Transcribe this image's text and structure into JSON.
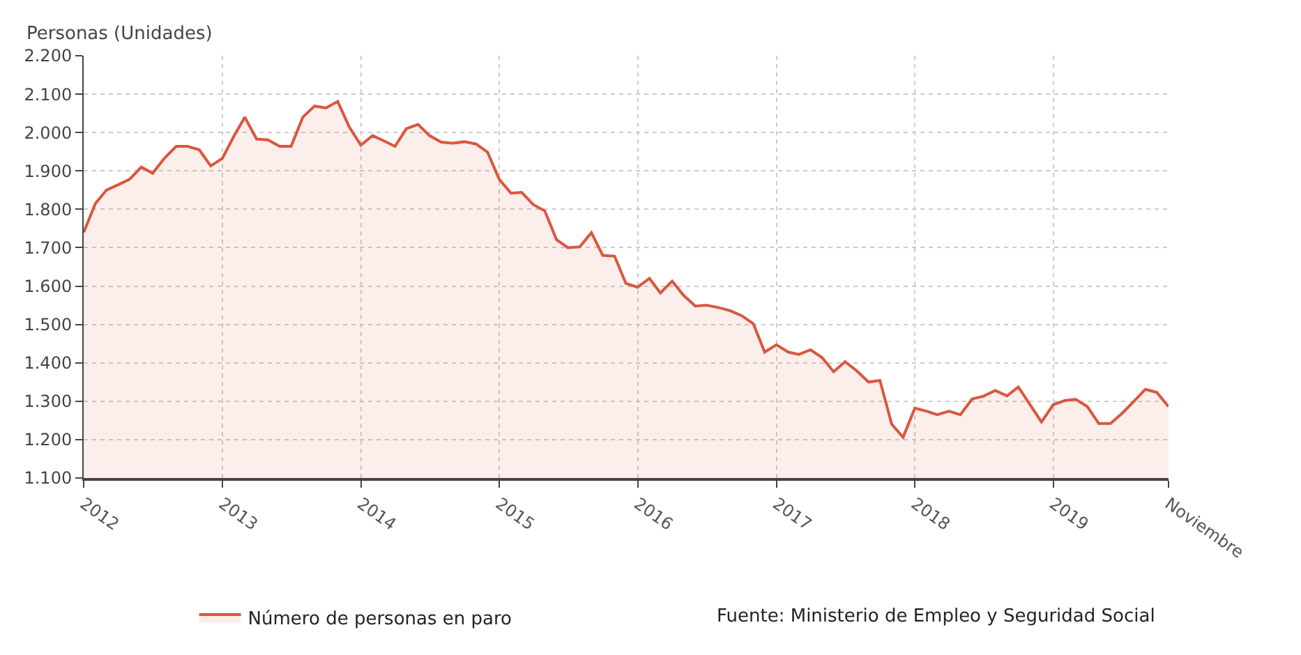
{
  "chart_data": {
    "type": "area",
    "ylabel": "Personas (Unidades)",
    "x": [
      "2012-01",
      "2012-02",
      "2012-03",
      "2012-04",
      "2012-05",
      "2012-06",
      "2012-07",
      "2012-08",
      "2012-09",
      "2012-10",
      "2012-11",
      "2012-12",
      "2013-01",
      "2013-02",
      "2013-03",
      "2013-04",
      "2013-05",
      "2013-06",
      "2013-07",
      "2013-08",
      "2013-09",
      "2013-10",
      "2013-11",
      "2013-12",
      "2014-01",
      "2014-02",
      "2014-03",
      "2014-04",
      "2014-05",
      "2014-06",
      "2014-07",
      "2014-08",
      "2014-09",
      "2014-10",
      "2014-11",
      "2014-12",
      "2015-01",
      "2015-02",
      "2015-03",
      "2015-04",
      "2015-05",
      "2015-06",
      "2015-07",
      "2015-08",
      "2015-09",
      "2015-10",
      "2015-11",
      "2015-12",
      "2016-01",
      "2016-02",
      "2016-03",
      "2016-04",
      "2016-05",
      "2016-06",
      "2016-07",
      "2016-08",
      "2016-09",
      "2016-10",
      "2016-11",
      "2016-12",
      "2017-01",
      "2017-02",
      "2017-03",
      "2017-04",
      "2017-05",
      "2017-06",
      "2017-07",
      "2017-08",
      "2017-09",
      "2017-10",
      "2017-11",
      "2017-12",
      "2018-01",
      "2018-02",
      "2018-03",
      "2018-04",
      "2018-05",
      "2018-06",
      "2018-07",
      "2018-08",
      "2018-09",
      "2018-10",
      "2018-11",
      "2018-12",
      "2019-01",
      "2019-02",
      "2019-03",
      "2019-04",
      "2019-05",
      "2019-06",
      "2019-07",
      "2019-08",
      "2019-09",
      "2019-10",
      "2019-11"
    ],
    "series": [
      {
        "name": "Número de personas en paro",
        "color": "#d9573f",
        "values": [
          1740,
          1815,
          1850,
          1864,
          1878,
          1910,
          1894,
          1933,
          1964,
          1964,
          1955,
          1913,
          1933,
          1992,
          2040,
          1983,
          1981,
          1964,
          1964,
          2040,
          2069,
          2064,
          2081,
          2015,
          1967,
          1992,
          1979,
          1964,
          2010,
          2021,
          1992,
          1975,
          1972,
          1976,
          1970,
          1949,
          1878,
          1842,
          1844,
          1812,
          1796,
          1721,
          1700,
          1702,
          1739,
          1680,
          1678,
          1607,
          1597,
          1620,
          1582,
          1613,
          1576,
          1548,
          1550,
          1544,
          1536,
          1523,
          1502,
          1428,
          1447,
          1428,
          1422,
          1434,
          1414,
          1377,
          1403,
          1379,
          1350,
          1354,
          1240,
          1206,
          1282,
          1274,
          1265,
          1274,
          1265,
          1306,
          1313,
          1328,
          1314,
          1337,
          1291,
          1246,
          1291,
          1302,
          1305,
          1286,
          1242,
          1242,
          1268,
          1299,
          1331,
          1323,
          1286
        ]
      }
    ],
    "xlim": [
      "2012-01",
      "2019-11"
    ],
    "xticks": [
      {
        "value": "2012-01",
        "label": "2012"
      },
      {
        "value": "2013-01",
        "label": "2013"
      },
      {
        "value": "2014-01",
        "label": "2014"
      },
      {
        "value": "2015-01",
        "label": "2015"
      },
      {
        "value": "2016-01",
        "label": "2016"
      },
      {
        "value": "2017-01",
        "label": "2017"
      },
      {
        "value": "2018-01",
        "label": "2018"
      },
      {
        "value": "2019-01",
        "label": "2019"
      },
      {
        "value": "2019-11",
        "label": "Noviembre"
      }
    ],
    "ylim": [
      1100,
      2200
    ],
    "yticks": [
      {
        "value": 1100,
        "label": "1.100"
      },
      {
        "value": 1200,
        "label": "1.200"
      },
      {
        "value": 1300,
        "label": "1.300"
      },
      {
        "value": 1400,
        "label": "1.400"
      },
      {
        "value": 1500,
        "label": "1.500"
      },
      {
        "value": 1600,
        "label": "1.600"
      },
      {
        "value": 1700,
        "label": "1.700"
      },
      {
        "value": 1800,
        "label": "1.800"
      },
      {
        "value": 1900,
        "label": "1.900"
      },
      {
        "value": 2000,
        "label": "2.000"
      },
      {
        "value": 2100,
        "label": "2.100"
      },
      {
        "value": 2200,
        "label": "2.200"
      }
    ],
    "grid": true,
    "legend": "bottom",
    "marker": "none",
    "line_style": "solid",
    "annotations": [
      "Fuente: Ministerio de Empleo y Seguridad Social"
    ]
  }
}
